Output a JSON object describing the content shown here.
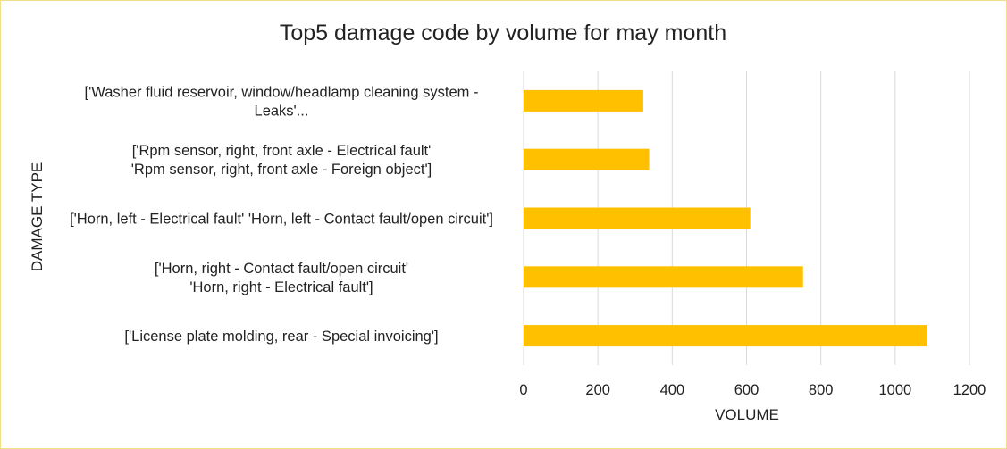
{
  "chart_data": {
    "type": "bar",
    "orientation": "horizontal",
    "title": "Top5 damage code by volume for may month",
    "xlabel": "VOLUME",
    "ylabel": "DAMAGE TYPE",
    "xlim": [
      0,
      1200
    ],
    "x_ticks": [
      "0",
      "200",
      "400",
      "600",
      "800",
      "1000",
      "1200"
    ],
    "grid": "vertical",
    "legend": "none",
    "bar_color": "#FFC000",
    "categories": [
      [
        "['Washer fluid reservoir, window/headlamp cleaning system -",
        "Leaks'..."
      ],
      [
        "['Rpm sensor, right, front axle - Electrical fault'",
        "'Rpm sensor, right, front axle - Foreign object']"
      ],
      [
        "['Horn, left - Electrical fault' 'Horn, left - Contact fault/open circuit']"
      ],
      [
        "['Horn, right - Contact fault/open circuit'",
        "'Horn, right - Electrical fault']"
      ],
      [
        "['License plate molding, rear - Special invoicing']"
      ]
    ],
    "values": [
      322,
      338,
      610,
      752,
      1085
    ]
  }
}
